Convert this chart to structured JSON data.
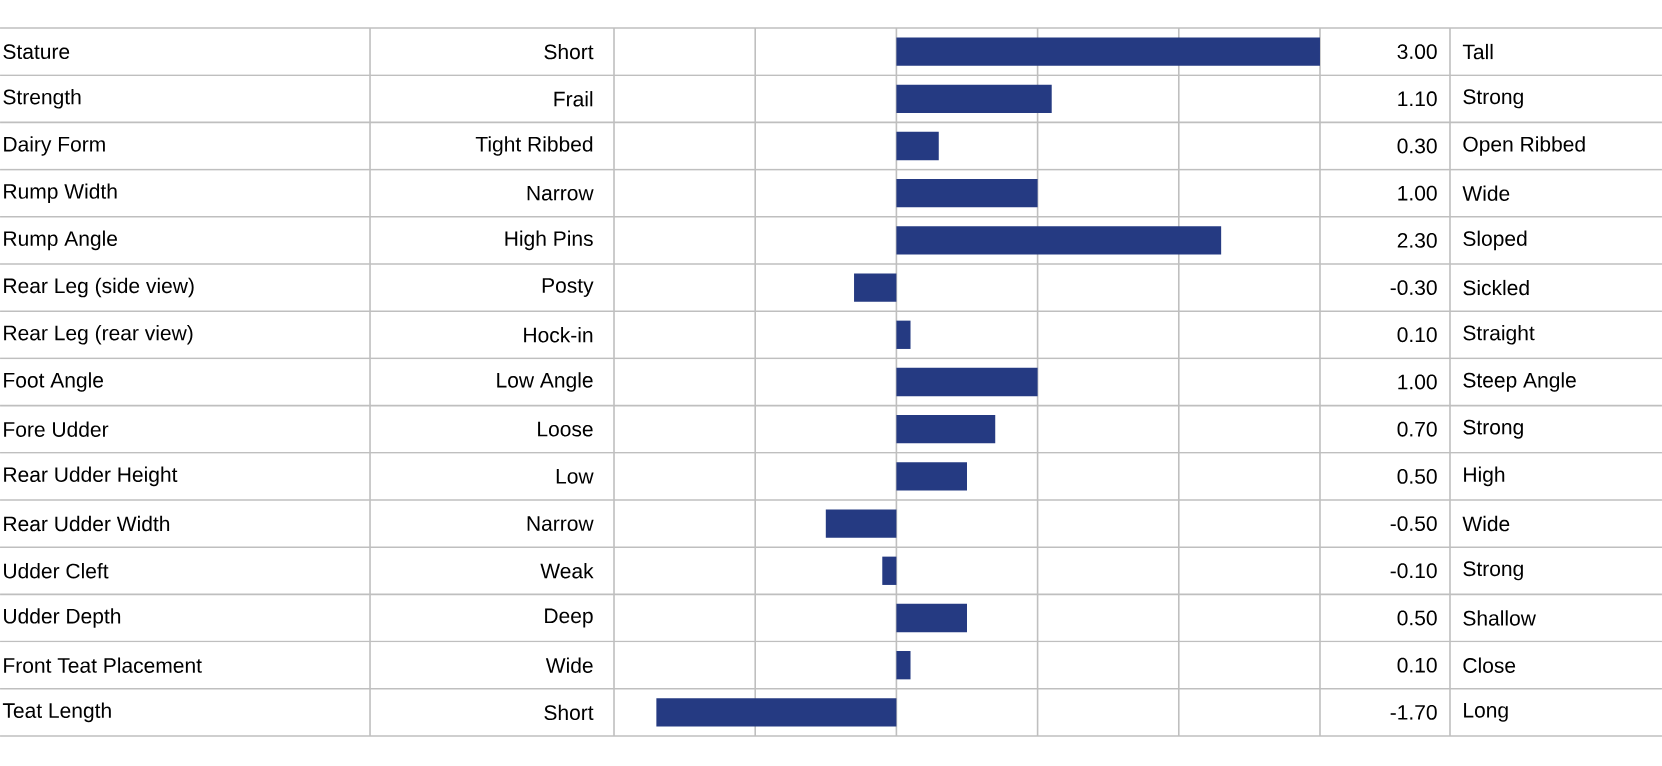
{
  "chart_data": {
    "type": "bar",
    "orientation": "horizontal",
    "categories": [
      "Stature",
      "Strength",
      "Dairy Form",
      "Rump Width",
      "Rump Angle",
      "Rear Leg (side view)",
      "Rear Leg (rear view)",
      "Foot Angle",
      "Fore Udder",
      "Rear Udder Height",
      "Rear Udder Width",
      "Udder Cleft",
      "Udder Depth",
      "Front Teat Placement",
      "Teat Length"
    ],
    "values": [
      3.0,
      1.1,
      0.3,
      1.0,
      2.3,
      -0.3,
      0.1,
      1.0,
      0.7,
      0.5,
      -0.5,
      -0.1,
      0.5,
      0.1,
      -1.7
    ],
    "value_labels": [
      "3.00",
      "1.10",
      "0.30",
      "1.00",
      "2.30",
      "-0.30",
      "0.10",
      "1.00",
      "0.70",
      "0.50",
      "-0.50",
      "-0.10",
      "0.50",
      "0.10",
      "-1.70"
    ],
    "color": "#253a82",
    "grid": "x",
    "tick_labels": false,
    "annotations": [
      "Short",
      "Frail",
      "Tight Ribbed",
      "Narrow",
      "High Pins",
      "Posty",
      "Hock-in",
      "Low Angle",
      "Loose",
      "Low",
      "Narrow",
      "Weak",
      "Deep",
      "Wide",
      "Short",
      "Tall",
      "Strong",
      "Open Ribbed",
      "Wide",
      "Sloped",
      "Sickled",
      "Straight",
      "Steep Angle",
      "Strong",
      "High",
      "Wide",
      "Strong",
      "Shallow",
      "Close",
      "Long"
    ]
  }
}
